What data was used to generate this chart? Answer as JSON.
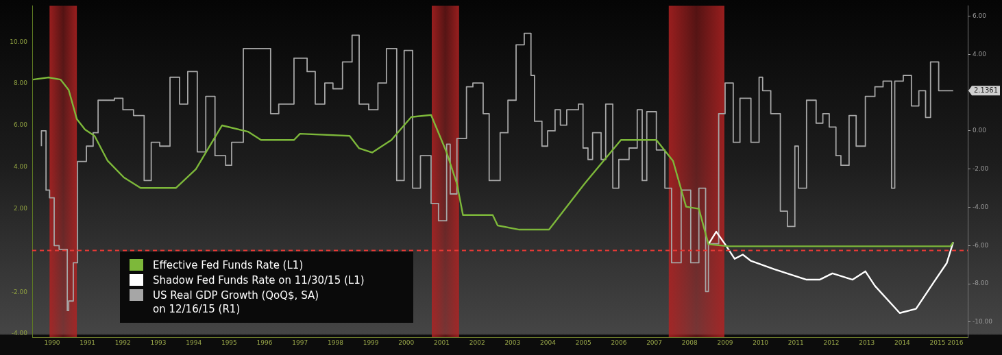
{
  "chart_data": {
    "type": "line",
    "series": [
      {
        "name": "Effective Fed Funds Rate (L1)",
        "color": "#7db83a",
        "x": [
          1989.96,
          1990.4,
          1990.74,
          1990.97,
          1991.2,
          1991.43,
          1991.7,
          1992.07,
          1992.53,
          1993.0,
          1994.0,
          1994.56,
          1995.3,
          1996.03,
          1996.4,
          1997.33,
          1997.5,
          1998.9,
          1999.17,
          1999.54,
          2000.08,
          2000.64,
          2001.2,
          2001.64,
          2001.93,
          2002.1,
          2002.94,
          2003.08,
          2003.69,
          2004.53,
          2005.53,
          2006.56,
          2007.56,
          2008.03,
          2008.4,
          2008.76,
          2009.03,
          2009.6,
          2012.17,
          2015.86,
          2015.94
        ],
        "values": [
          8.2,
          8.3,
          8.2,
          7.7,
          6.3,
          5.8,
          5.5,
          4.3,
          3.5,
          3.0,
          3.0,
          3.9,
          6.0,
          5.7,
          5.3,
          5.3,
          5.6,
          5.5,
          4.9,
          4.7,
          5.3,
          6.4,
          6.5,
          4.7,
          3.2,
          1.7,
          1.7,
          1.2,
          1.0,
          1.0,
          3.2,
          5.3,
          5.3,
          4.3,
          2.1,
          2.0,
          0.3,
          0.2,
          0.2,
          0.2,
          0.4
        ]
      },
      {
        "name": "Shadow Fed Funds Rate on 11/30/15 (L1)",
        "color": "#ffffff",
        "x": [
          2009.03,
          2009.25,
          2009.5,
          2009.77,
          2010.0,
          2010.23,
          2010.89,
          2011.8,
          2012.17,
          2012.53,
          2013.1,
          2013.46,
          2013.73,
          2014.43,
          2014.89,
          2015.4,
          2015.76,
          2015.94
        ],
        "values": [
          0.3,
          0.9,
          0.3,
          -0.4,
          -0.2,
          -0.5,
          -0.9,
          -1.4,
          -1.4,
          -1.1,
          -1.4,
          -1.0,
          -1.7,
          -3.0,
          -2.8,
          -1.5,
          -0.6,
          0.4
        ]
      },
      {
        "name": "US Real GDP Growth (QoQ$, SA)\non 12/16/15 (R1)",
        "type": "step",
        "axis": "y2",
        "color": "#a6a6a6",
        "x": [
          1990.2,
          1990.33,
          1990.43,
          1990.56,
          1990.7,
          1990.93,
          1990.97,
          1991.1,
          1991.22,
          1991.47,
          1991.66,
          1991.8,
          1992.26,
          1992.5,
          1992.8,
          1993.1,
          1993.3,
          1993.54,
          1993.83,
          1994.1,
          1994.33,
          1994.6,
          1994.84,
          1995.1,
          1995.4,
          1995.57,
          1995.9,
          1996.67,
          1996.9,
          1997.33,
          1997.7,
          1997.93,
          1998.2,
          1998.43,
          1998.7,
          1998.97,
          1999.17,
          1999.44,
          1999.7,
          1999.94,
          2000.23,
          2000.44,
          2000.68,
          2000.9,
          2001.2,
          2001.41,
          2001.64,
          2001.74,
          2001.93,
          2002.2,
          2002.38,
          2002.67,
          2002.84,
          2003.15,
          2003.37,
          2003.6,
          2003.83,
          2004.02,
          2004.12,
          2004.33,
          2004.49,
          2004.7,
          2004.85,
          2005.03,
          2005.36,
          2005.49,
          2005.63,
          2005.76,
          2006.0,
          2006.13,
          2006.33,
          2006.5,
          2006.79,
          2007.02,
          2007.16,
          2007.29,
          2007.56,
          2007.8,
          2007.99,
          2008.26,
          2008.53,
          2008.76,
          2008.95,
          2009.03,
          2009.32,
          2009.5,
          2009.73,
          2009.92,
          2010.23,
          2010.46,
          2010.56,
          2010.79,
          2011.06,
          2011.26,
          2011.47,
          2011.57,
          2011.8,
          2012.07,
          2012.26,
          2012.44,
          2012.63,
          2012.77,
          2013.0,
          2013.2,
          2013.46,
          2013.73,
          2013.96,
          2014.2,
          2014.29,
          2014.53,
          2014.76,
          2014.97,
          2015.16,
          2015.3,
          2015.53,
          2015.76,
          2015.94
        ],
        "values": [
          -0.8,
          0.0,
          -3.1,
          -3.5,
          -6.0,
          -6.2,
          -9.4,
          -8.9,
          -6.9,
          -1.6,
          -0.8,
          -0.1,
          1.6,
          1.7,
          1.1,
          0.8,
          -2.6,
          -0.6,
          -0.8,
          2.8,
          1.4,
          3.1,
          -1.1,
          1.8,
          -1.3,
          -1.8,
          -0.6,
          4.3,
          0.9,
          1.4,
          3.8,
          3.1,
          1.4,
          2.5,
          2.2,
          3.6,
          5.0,
          1.4,
          1.1,
          2.5,
          4.3,
          -2.6,
          4.2,
          -3.0,
          -1.3,
          -3.8,
          -4.7,
          -0.7,
          -3.3,
          -0.4,
          2.3,
          2.5,
          0.9,
          -2.6,
          -0.1,
          1.6,
          4.5,
          5.1,
          2.9,
          0.5,
          -0.8,
          0.0,
          1.1,
          0.3,
          1.1,
          1.4,
          -0.9,
          -1.5,
          -0.1,
          -1.5,
          1.4,
          -3.0,
          -1.5,
          -0.9,
          1.1,
          -2.6,
          1.0,
          -1.0,
          -3.0,
          -6.9,
          -3.1,
          -6.9,
          -3.0,
          -8.4,
          -5.9,
          0.9,
          2.5,
          -0.6,
          1.7,
          -0.6,
          2.8,
          2.1,
          0.9,
          -4.2,
          -5.0,
          -0.8,
          -3.0,
          1.6,
          0.4,
          0.9,
          0.2,
          -1.3,
          -1.8,
          0.8,
          -0.8,
          1.8,
          2.3,
          2.6,
          -3.0,
          2.6,
          2.9,
          1.3,
          2.1,
          0.7,
          3.6,
          2.1,
          2.1
        ]
      }
    ],
    "xlim": [
      1989.94,
      2016.35
    ],
    "xticks": [
      {
        "value": 1990.5,
        "label": "1990"
      },
      {
        "value": 1991.5,
        "label": "1991"
      },
      {
        "value": 1992.5,
        "label": "1992"
      },
      {
        "value": 1993.5,
        "label": "1993"
      },
      {
        "value": 1994.5,
        "label": "1994"
      },
      {
        "value": 1995.5,
        "label": "1995"
      },
      {
        "value": 1996.5,
        "label": "1996"
      },
      {
        "value": 1997.5,
        "label": "1997"
      },
      {
        "value": 1998.5,
        "label": "1998"
      },
      {
        "value": 1999.5,
        "label": "1999"
      },
      {
        "value": 2000.5,
        "label": "2000"
      },
      {
        "value": 2001.5,
        "label": "2001"
      },
      {
        "value": 2002.5,
        "label": "2002"
      },
      {
        "value": 2003.5,
        "label": "2003"
      },
      {
        "value": 2004.5,
        "label": "2004"
      },
      {
        "value": 2005.5,
        "label": "2005"
      },
      {
        "value": 2006.5,
        "label": "2006"
      },
      {
        "value": 2007.5,
        "label": "2007"
      },
      {
        "value": 2008.5,
        "label": "2008"
      },
      {
        "value": 2009.5,
        "label": "2009"
      },
      {
        "value": 2010.5,
        "label": "2010"
      },
      {
        "value": 2011.5,
        "label": "2011"
      },
      {
        "value": 2012.5,
        "label": "2012"
      },
      {
        "value": 2013.5,
        "label": "2013"
      },
      {
        "value": 2014.5,
        "label": "2014"
      },
      {
        "value": 2015.5,
        "label": "2015"
      },
      {
        "value": 2016,
        "label": "2016"
      }
    ],
    "ylim": [
      -4.16,
      11.74
    ],
    "yticks": [
      {
        "value": 10,
        "label": "10.00"
      },
      {
        "value": 8,
        "label": "8.00"
      },
      {
        "value": 6,
        "label": "6.00"
      },
      {
        "value": 4,
        "label": "4.00"
      },
      {
        "value": 2,
        "label": "2.00"
      },
      {
        "value": -2,
        "label": "-2.00"
      },
      {
        "value": -4,
        "label": "-4.00"
      }
    ],
    "y2lim": [
      -10.79,
      6.54
    ],
    "y2ticks": [
      {
        "value": 6,
        "label": "6.00"
      },
      {
        "value": 4,
        "label": "4.00"
      },
      {
        "value": 0,
        "label": "0.00"
      },
      {
        "value": -2,
        "label": "-2.00"
      },
      {
        "value": -4,
        "label": "-4.00"
      },
      {
        "value": -6,
        "label": "-6.00"
      },
      {
        "value": -8,
        "label": "-8.00"
      },
      {
        "value": -10,
        "label": "-10.00"
      }
    ],
    "bands": [
      {
        "axis": "x",
        "from": 1990.43,
        "to": 1991.2,
        "color": "#b22222"
      },
      {
        "axis": "x",
        "from": 2001.22,
        "to": 2001.99,
        "color": "#b22222"
      },
      {
        "axis": "x",
        "from": 2007.91,
        "to": 2009.48,
        "color": "#b22222"
      }
    ],
    "ref_lines": [
      {
        "axis": "y",
        "value": 0,
        "color": "#e53935",
        "line_style": "dashed"
      }
    ],
    "annotations": [
      "2.1361"
    ],
    "legend": "bottom left"
  }
}
